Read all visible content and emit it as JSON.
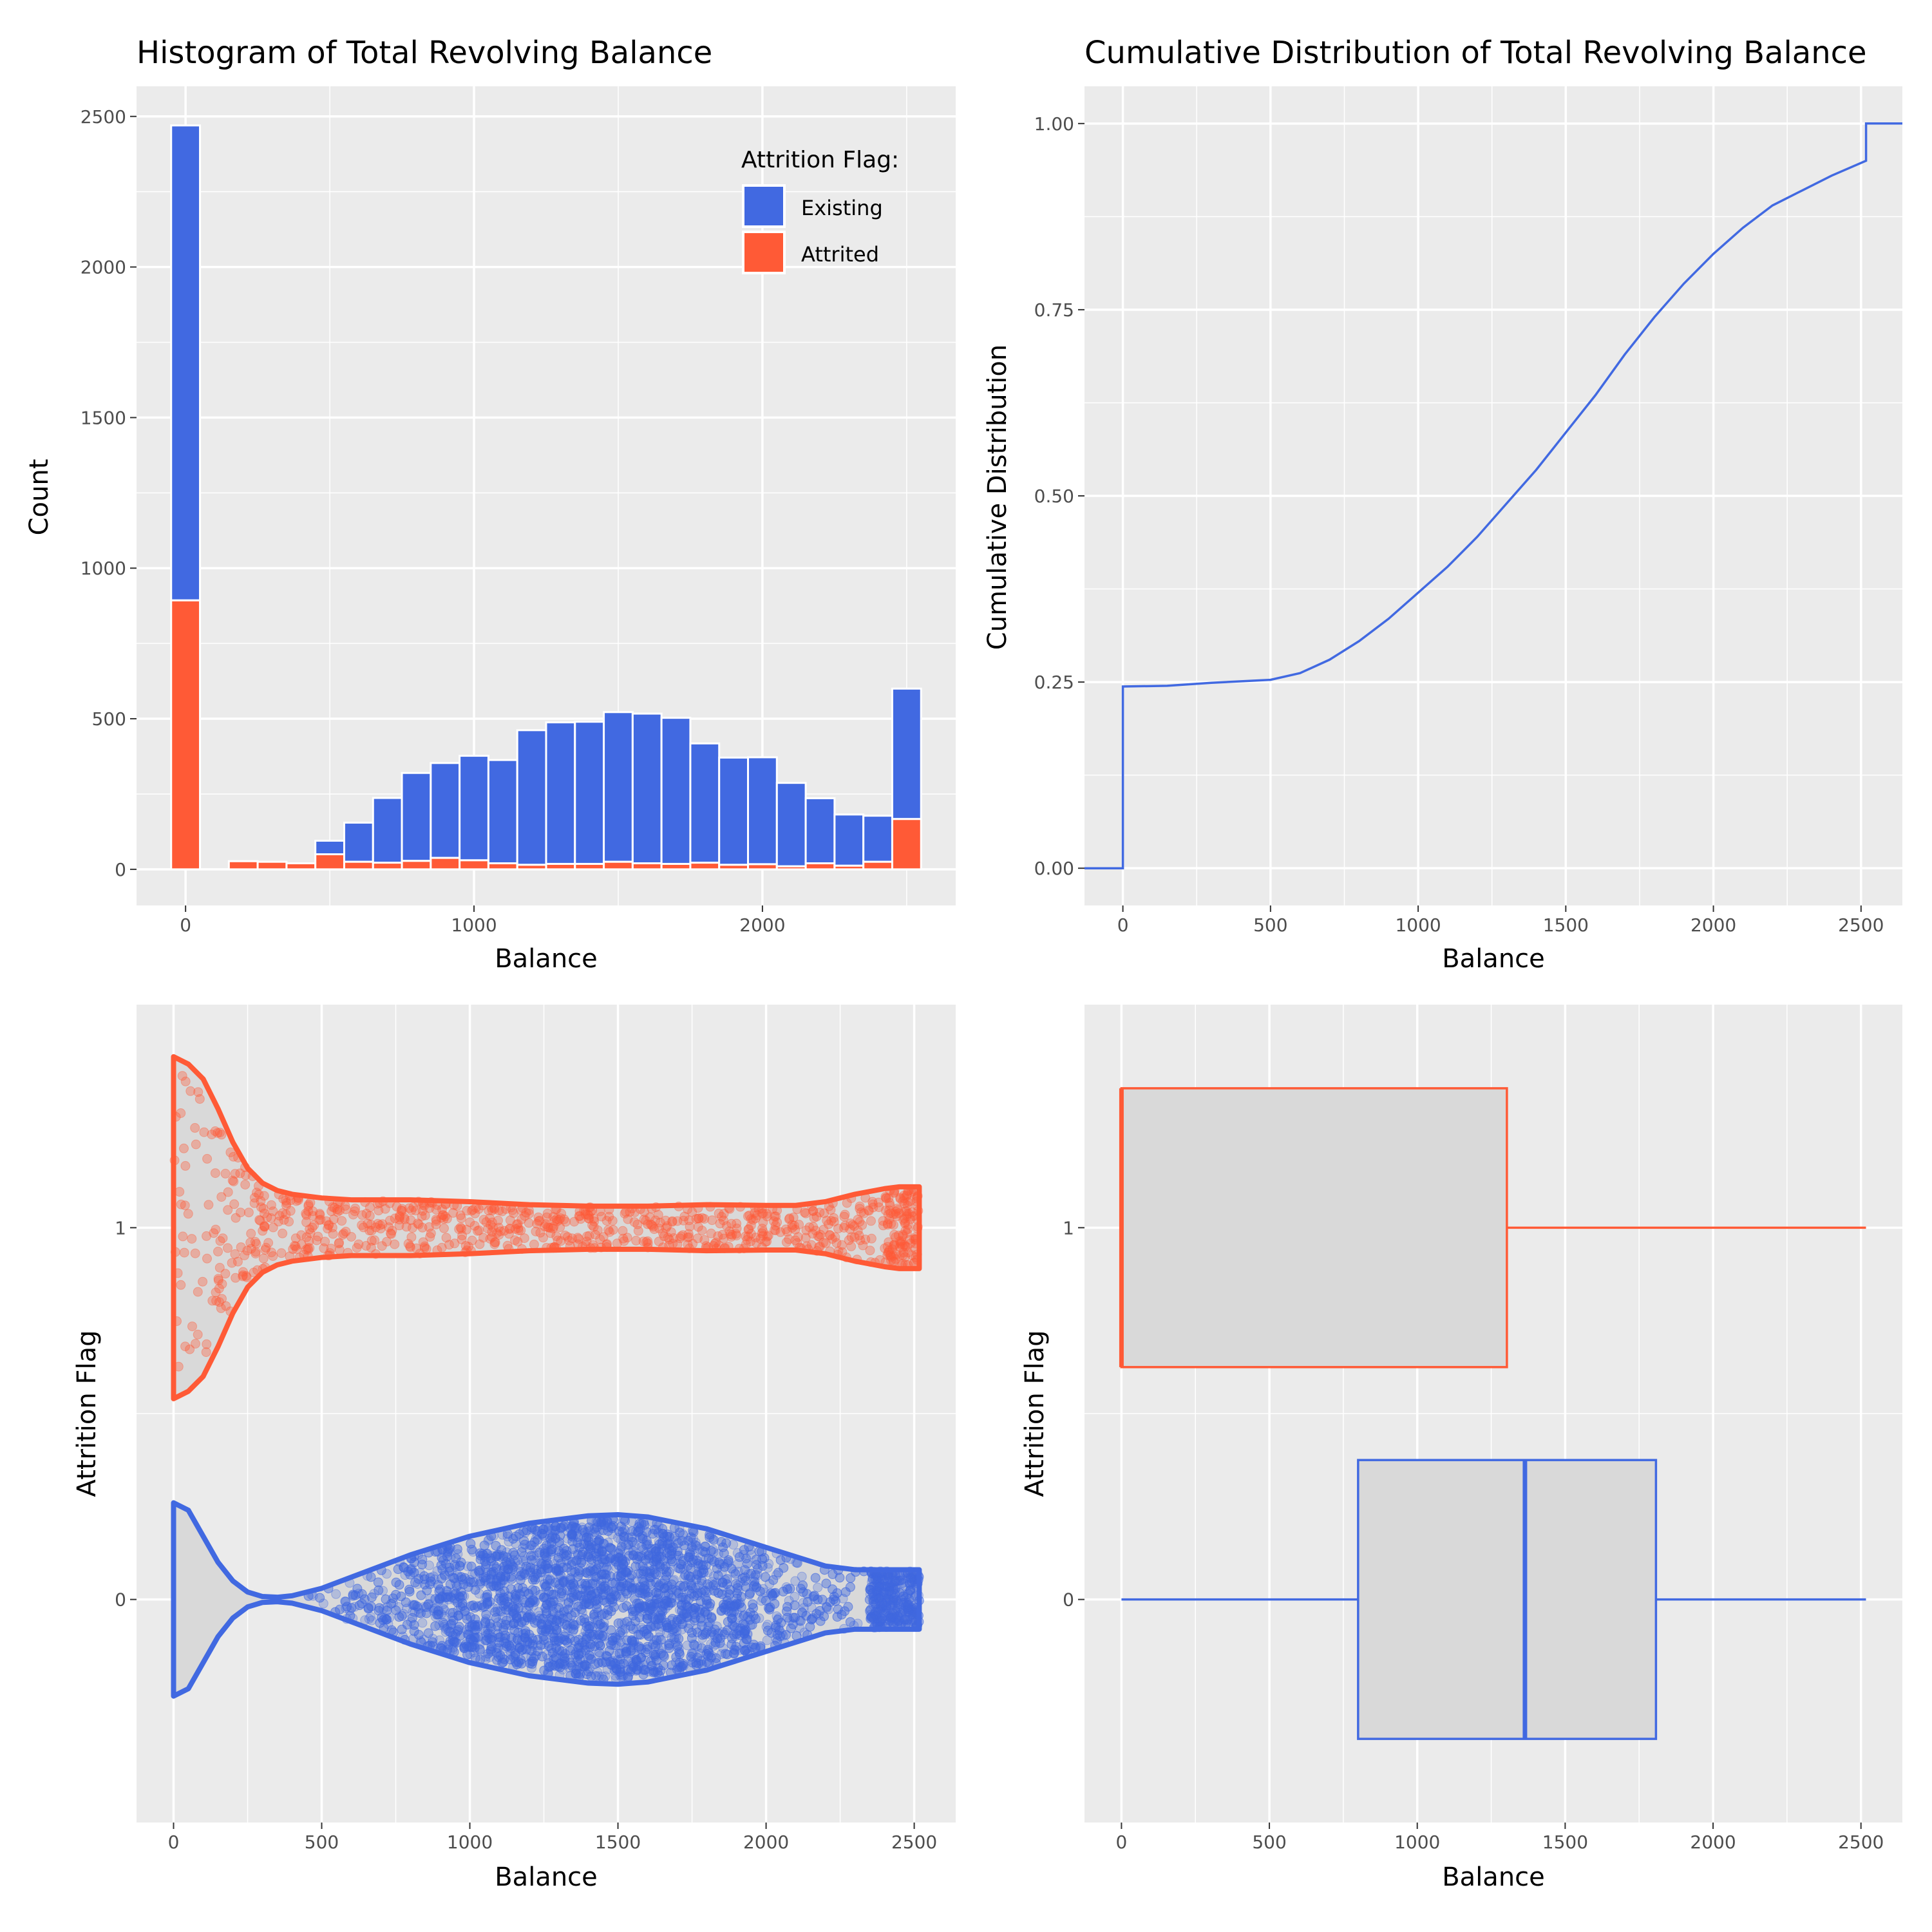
{
  "colors": {
    "existing": "#4169E1",
    "attrited": "#FF5A36",
    "panel_bg": "#EBEBEB",
    "grid": "#FFFFFF",
    "box_fill": "#D9D9D9"
  },
  "chart_data": [
    {
      "type": "bar",
      "stacked": true,
      "title": "Histogram of Total Revolving Balance",
      "xlabel": "Balance",
      "ylabel": "Count",
      "xlim": [
        -170,
        2670
      ],
      "ylim": [
        -120,
        2600
      ],
      "xticks": [
        "0",
        "1000",
        "2000"
      ],
      "yticks": [
        "0",
        "500",
        "1000",
        "1500",
        "2000",
        "2500"
      ],
      "bin_width": 100,
      "bin_centers": [
        0,
        100,
        200,
        300,
        400,
        500,
        600,
        700,
        800,
        900,
        1000,
        1100,
        1200,
        1300,
        1400,
        1500,
        1600,
        1700,
        1800,
        1900,
        2000,
        2100,
        2200,
        2300,
        2400,
        2500
      ],
      "legend": {
        "title": "Attrition Flag:",
        "position": "top-right",
        "entries": [
          "Existing",
          "Attrited"
        ]
      },
      "series": [
        {
          "name": "Attrited",
          "values": [
            893,
            0,
            27,
            25,
            20,
            50,
            25,
            22,
            28,
            38,
            30,
            20,
            15,
            18,
            18,
            25,
            20,
            18,
            22,
            15,
            17,
            10,
            20,
            12,
            25,
            167
          ]
        },
        {
          "name": "Existing",
          "values": [
            1577,
            0,
            0,
            0,
            0,
            45,
            130,
            215,
            292,
            315,
            347,
            343,
            447,
            470,
            472,
            497,
            497,
            485,
            396,
            356,
            355,
            277,
            216,
            170,
            153,
            433
          ]
        }
      ]
    },
    {
      "type": "line",
      "step": true,
      "title": "Cumulative Distribution of Total Revolving Balance",
      "xlabel": "Balance",
      "ylabel": "Cumulative Distribution",
      "xlim": [
        -130,
        2640
      ],
      "ylim": [
        -0.05,
        1.05
      ],
      "xticks": [
        "0",
        "500",
        "1000",
        "1500",
        "2000",
        "2500"
      ],
      "yticks": [
        "0.00",
        "0.25",
        "0.50",
        "0.75",
        "1.00"
      ],
      "series": [
        {
          "x": [
            -130,
            0,
            0,
            150,
            300,
            500,
            600,
            700,
            800,
            900,
            1000,
            1100,
            1200,
            1300,
            1400,
            1500,
            1600,
            1700,
            1800,
            1900,
            2000,
            2100,
            2200,
            2300,
            2400,
            2517,
            2517,
            2640
          ],
          "y": [
            0,
            0,
            0.244,
            0.245,
            0.249,
            0.253,
            0.262,
            0.28,
            0.305,
            0.335,
            0.37,
            0.405,
            0.445,
            0.49,
            0.535,
            0.585,
            0.635,
            0.69,
            0.74,
            0.785,
            0.825,
            0.86,
            0.89,
            0.91,
            0.93,
            0.95,
            1.0,
            1.0
          ]
        }
      ]
    },
    {
      "type": "scatter",
      "subtype": "violin-with-jitter",
      "title": "",
      "xlabel": "Balance",
      "ylabel": "Attrition Flag",
      "xlim": [
        -125,
        2640
      ],
      "ylim": [
        -0.6,
        1.6
      ],
      "xticks": [
        "0",
        "500",
        "1000",
        "1500",
        "2000",
        "2500"
      ],
      "yticks": [
        "0",
        "1"
      ],
      "series": [
        {
          "name": "1",
          "violin_x": [
            0,
            50,
            100,
            150,
            200,
            250,
            300,
            350,
            400,
            450,
            500,
            600,
            800,
            1000,
            1200,
            1400,
            1600,
            1800,
            2000,
            2100,
            2200,
            2300,
            2400,
            2450,
            2500,
            2517
          ],
          "violin_half_width": [
            0.46,
            0.44,
            0.4,
            0.32,
            0.23,
            0.16,
            0.12,
            0.1,
            0.09,
            0.085,
            0.08,
            0.075,
            0.075,
            0.07,
            0.062,
            0.058,
            0.058,
            0.062,
            0.06,
            0.06,
            0.07,
            0.09,
            0.105,
            0.11,
            0.11,
            0.11
          ]
        },
        {
          "name": "0",
          "violin_x": [
            0,
            50,
            100,
            150,
            200,
            250,
            300,
            350,
            400,
            500,
            600,
            800,
            1000,
            1200,
            1400,
            1500,
            1600,
            1800,
            2000,
            2200,
            2300,
            2400,
            2500,
            2517
          ],
          "violin_half_width": [
            0.26,
            0.24,
            0.17,
            0.1,
            0.05,
            0.02,
            0.008,
            0.006,
            0.01,
            0.03,
            0.06,
            0.12,
            0.17,
            0.205,
            0.225,
            0.228,
            0.222,
            0.19,
            0.14,
            0.09,
            0.08,
            0.08,
            0.08,
            0.08
          ]
        }
      ]
    },
    {
      "type": "boxplot",
      "title": "",
      "xlabel": "Balance",
      "ylabel": "Attrition Flag",
      "xlim": [
        -125,
        2640
      ],
      "ylim": [
        -0.6,
        1.6
      ],
      "xticks": [
        "0",
        "500",
        "1000",
        "1500",
        "2000",
        "2500"
      ],
      "yticks": [
        "0",
        "1"
      ],
      "series": [
        {
          "name": "1",
          "whisker_low": 0,
          "q1": 0,
          "median": 0,
          "q3": 1303,
          "whisker_high": 2517
        },
        {
          "name": "0",
          "whisker_low": 0,
          "q1": 800,
          "median": 1364,
          "q3": 1807,
          "whisker_high": 2517
        }
      ]
    }
  ]
}
